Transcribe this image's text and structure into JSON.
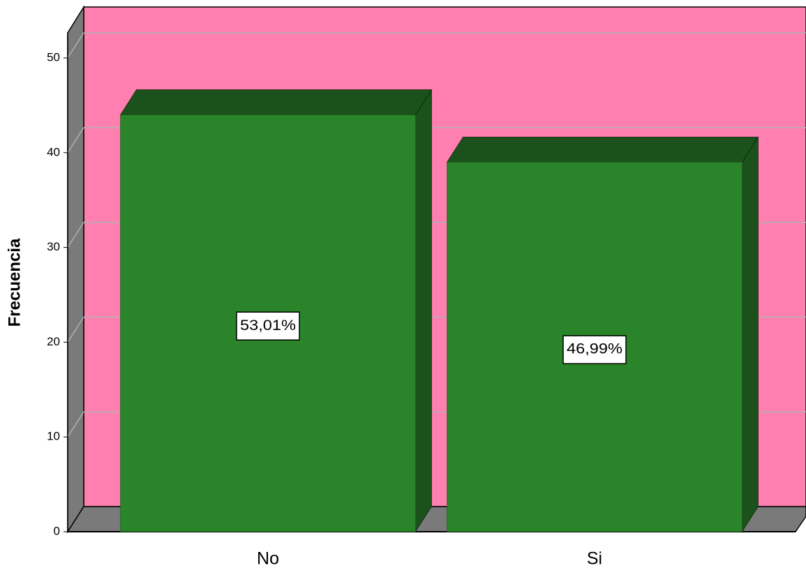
{
  "chart_data": {
    "type": "bar3d",
    "y_label": "Frecuencia",
    "categories": [
      "No",
      "Si"
    ],
    "values": [
      44,
      39
    ],
    "percentages": [
      53.01,
      46.99
    ],
    "percentage_labels": [
      "53,01%",
      "46,99%"
    ],
    "color": "#2a852a",
    "ylim": [
      0,
      50
    ],
    "yticks": [
      0,
      10,
      20,
      30,
      40,
      50
    ],
    "grid": true
  }
}
